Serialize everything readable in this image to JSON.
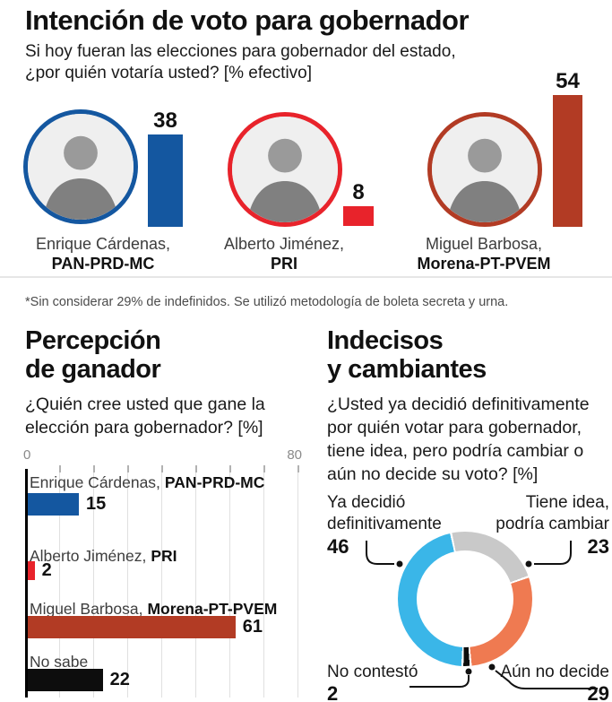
{
  "intent": {
    "title": "Intención de voto para gobernador",
    "subtitle_lines": [
      "Si hoy fueran las elecciones para gobernador del estado,",
      "¿por quién votaría usted? [% efectivo]"
    ],
    "candidates": [
      {
        "name": "Enrique Cárdenas,",
        "party": "PAN-PRD-MC",
        "value": "38",
        "color": "#1457a0"
      },
      {
        "name": "Alberto Jiménez,",
        "party": "PRI",
        "value": "8",
        "color": "#e8232b"
      },
      {
        "name": "Miguel Barbosa,",
        "party": "Morena-PT-PVEM",
        "value": "54",
        "color": "#b23b24"
      }
    ],
    "footnote": "*Sin considerar 29% de indefinidos. Se utilizó metodología de boleta secreta y urna."
  },
  "perception": {
    "title_lines": [
      "Percepción",
      "de ganador"
    ],
    "subtitle_lines": [
      "¿Quién cree usted que gane la",
      "elección para gobernador? [%]"
    ],
    "axis": {
      "min_label": "0",
      "max_label": "80",
      "max": 80,
      "step": 10
    },
    "rows": [
      {
        "name": "Enrique Cárdenas,",
        "party": "PAN-PRD-MC",
        "value": "15",
        "color": "#1457a0"
      },
      {
        "name": "Alberto Jiménez,",
        "party": "PRI",
        "value": "2",
        "color": "#e8232b"
      },
      {
        "name": "Miguel Barbosa,",
        "party": "Morena-PT-PVEM",
        "value": "61",
        "color": "#b23b24"
      },
      {
        "name": "No sabe",
        "party": "",
        "value": "22",
        "color": "#0d0d0d"
      }
    ]
  },
  "undecided": {
    "title_lines": [
      "Indecisos",
      "y cambiantes"
    ],
    "subtitle_lines": [
      "¿Usted ya decidió definitivamente",
      "por quién votar para gobernador,",
      "tiene idea, pero podría cambiar o",
      "aún no decide su voto? [%]"
    ],
    "start_angle_deg": -13,
    "slices": [
      {
        "label": "Tiene idea, podría cambiar",
        "value": 23,
        "color": "#c9c9c9"
      },
      {
        "label": "Aún no decide",
        "value": 29,
        "color": "#ef7a51"
      },
      {
        "label": "No contestó",
        "value": 2,
        "color": "#0d0d0d"
      },
      {
        "label": "Ya decidió definitivamente",
        "value": 46,
        "color": "#3ab6e8"
      }
    ],
    "labels": {
      "decided": {
        "line1": "Ya decidió",
        "line2": "definitivamente",
        "value": "46"
      },
      "could_change": {
        "line1": "Tiene idea,",
        "line2": "podría cambiar",
        "value": "23"
      },
      "no_answer": {
        "line1": "No contestó",
        "value": "2"
      },
      "not_decided": {
        "line1": "Aún no decide",
        "value": "29"
      }
    }
  },
  "chart_data": [
    {
      "type": "bar",
      "title": "Intención de voto para gobernador",
      "subtitle": "Si hoy fueran las elecciones para gobernador del estado, ¿por quién votaría usted? [% efectivo]",
      "categories": [
        "Enrique Cárdenas, PAN-PRD-MC",
        "Alberto Jiménez, PRI",
        "Miguel Barbosa, Morena-PT-PVEM"
      ],
      "values": [
        38,
        8,
        54
      ],
      "colors": [
        "#1457a0",
        "#e8232b",
        "#b23b24"
      ],
      "ylim": [
        0,
        60
      ],
      "footnote": "*Sin considerar 29% de indefinidos. Se utilizó metodología de boleta secreta y urna."
    },
    {
      "type": "bar",
      "orientation": "horizontal",
      "title": "Percepción de ganador",
      "subtitle": "¿Quién cree usted que gane la elección para gobernador? [%]",
      "categories": [
        "Enrique Cárdenas, PAN-PRD-MC",
        "Alberto Jiménez, PRI",
        "Miguel Barbosa, Morena-PT-PVEM",
        "No sabe"
      ],
      "values": [
        15,
        2,
        61,
        22
      ],
      "colors": [
        "#1457a0",
        "#e8232b",
        "#b23b24",
        "#0d0d0d"
      ],
      "xlim": [
        0,
        80
      ],
      "grid": true,
      "tick_step": 10
    },
    {
      "type": "pie",
      "subtype": "donut",
      "title": "Indecisos y cambiantes",
      "subtitle": "¿Usted ya decidió definitivamente por quién votar para gobernador, tiene idea, pero podría cambiar o aún no decide su voto? [%]",
      "categories": [
        "Ya decidió definitivamente",
        "Tiene idea, podría cambiar",
        "Aún no decide",
        "No contestó"
      ],
      "values": [
        46,
        23,
        29,
        2
      ],
      "colors": [
        "#3ab6e8",
        "#c9c9c9",
        "#ef7a51",
        "#0d0d0d"
      ]
    }
  ]
}
